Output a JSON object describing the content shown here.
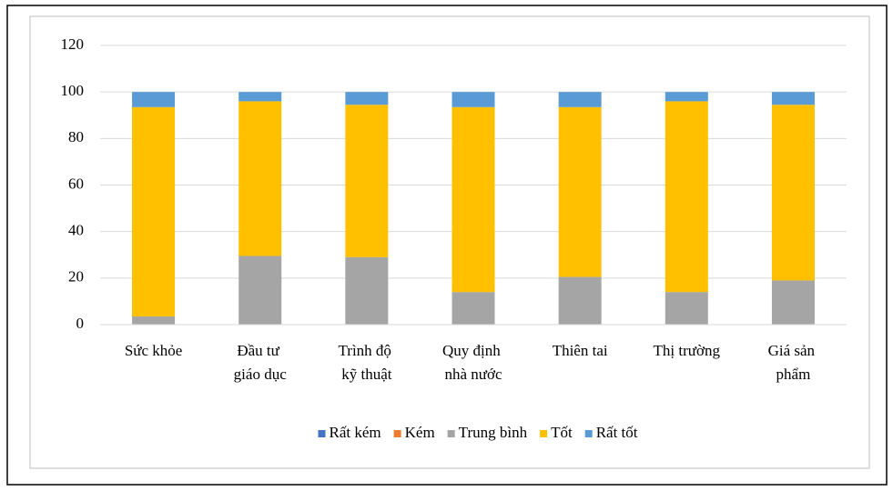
{
  "chart_data": {
    "type": "stacked_bar",
    "categories": [
      "Sức khỏe",
      "Đầu tư giáo dục",
      "Trình độ kỹ thuật",
      "Quy định nhà nước",
      "Thiên tai",
      "Thị trường",
      "Giá sản phẩm"
    ],
    "series": [
      {
        "name": "Rất kém",
        "color": "#4472c4",
        "values": [
          0,
          0,
          0,
          0,
          0,
          0,
          0
        ]
      },
      {
        "name": "Kém",
        "color": "#ed7d31",
        "values": [
          0,
          0,
          0,
          0,
          0,
          0,
          0
        ]
      },
      {
        "name": "Trung bình",
        "color": "#a5a5a5",
        "values": [
          3.5,
          29.5,
          29,
          14,
          20.5,
          14,
          19
        ]
      },
      {
        "name": "Tốt",
        "color": "#ffc000",
        "values": [
          90,
          66.5,
          65.5,
          79.5,
          73,
          82,
          75.5
        ]
      },
      {
        "name": "Rất tốt",
        "color": "#5b9bd5",
        "values": [
          6.5,
          4,
          5.5,
          6.5,
          6.5,
          4,
          5.5
        ]
      }
    ],
    "ylim": [
      0,
      120
    ],
    "yticks": [
      0,
      20,
      40,
      60,
      80,
      100,
      120
    ],
    "grid": true,
    "legend": "bottom"
  }
}
